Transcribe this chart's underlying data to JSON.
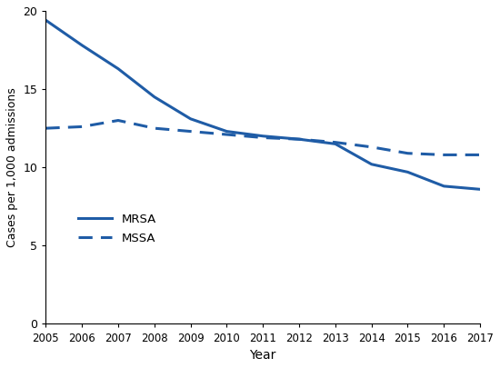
{
  "years": [
    2005,
    2006,
    2007,
    2008,
    2009,
    2010,
    2011,
    2012,
    2013,
    2014,
    2015,
    2016,
    2017
  ],
  "mrsa": [
    19.4,
    17.8,
    16.3,
    14.5,
    13.1,
    12.3,
    12.0,
    11.8,
    11.5,
    10.2,
    9.7,
    8.8,
    8.6
  ],
  "mssa": [
    12.5,
    12.6,
    13.0,
    12.5,
    12.3,
    12.1,
    11.9,
    11.8,
    11.6,
    11.3,
    10.9,
    10.8,
    10.8
  ],
  "line_color": "#1f5ca6",
  "xlabel": "Year",
  "ylabel": "Cases per 1,000 admissions",
  "ylim": [
    0,
    20
  ],
  "yticks": [
    0,
    5,
    10,
    15,
    20
  ],
  "legend_mrsa": "MRSA",
  "legend_mssa": "MSSA",
  "linewidth": 2.2,
  "figwidth": 5.5,
  "figheight": 4.05,
  "dpi": 100
}
